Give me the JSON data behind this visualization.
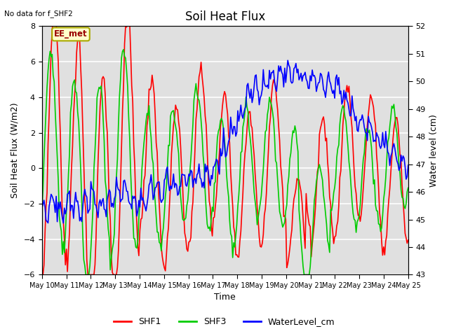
{
  "title": "Soil Heat Flux",
  "no_data_text": "No data for f_SHF2",
  "station_label": "EE_met",
  "ylabel_left": "Soil Heat Flux (W/m2)",
  "ylabel_right": "Water level (cm)",
  "xlabel": "Time",
  "ylim_left": [
    -6,
    8
  ],
  "ylim_right": [
    43.0,
    52.0
  ],
  "yticks_left": [
    -6,
    -4,
    -2,
    0,
    2,
    4,
    6,
    8
  ],
  "yticks_right": [
    43.0,
    44.0,
    45.0,
    46.0,
    47.0,
    48.0,
    49.0,
    50.0,
    51.0,
    52.0
  ],
  "xtick_labels": [
    "May 10",
    "May 11",
    "May 12",
    "May 13",
    "May 14",
    "May 15",
    "May 16",
    "May 17",
    "May 18",
    "May 19",
    "May 20",
    "May 21",
    "May 22",
    "May 23",
    "May 24",
    "May 25"
  ],
  "color_shf1": "#ff0000",
  "color_shf3": "#00cc00",
  "color_wl": "#0000ff",
  "legend_entries": [
    "SHF1",
    "SHF3",
    "WaterLevel_cm"
  ],
  "background_color": "#ffffff",
  "plot_bg_color": "#e0e0e0",
  "grid_color": "#ffffff",
  "title_fontsize": 12,
  "label_fontsize": 9,
  "tick_fontsize": 8,
  "linewidth": 1.2,
  "station_box_facecolor": "#ffffcc",
  "station_box_edgecolor": "#aaaa00",
  "station_text_color": "#990000"
}
